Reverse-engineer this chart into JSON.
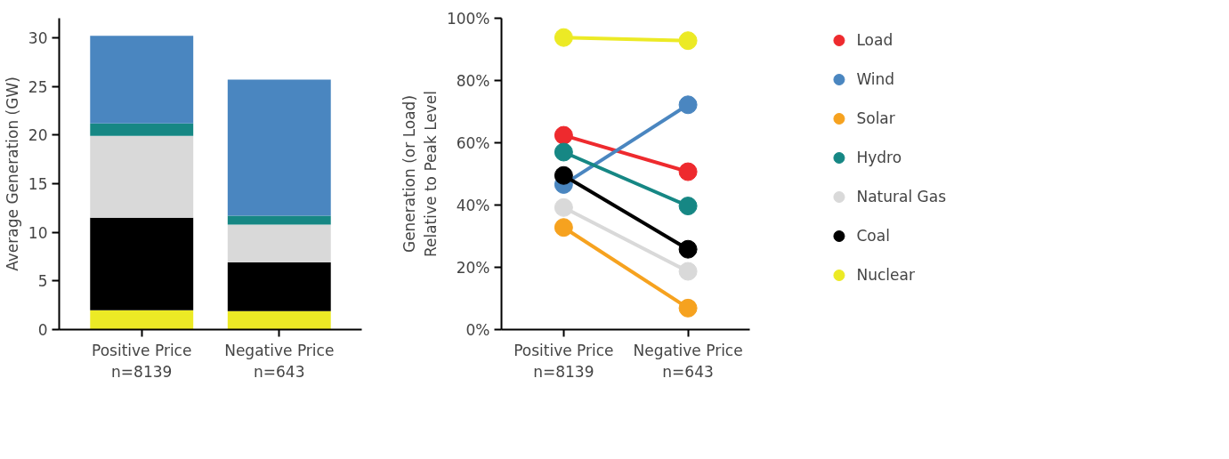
{
  "chart_data": [
    {
      "type": "bar",
      "stacked": true,
      "ylabel": "Average Generation (GW)",
      "categories": [
        "Positive Price\nn=8139",
        "Negative Price\nn=643"
      ],
      "ylim": [
        0,
        32
      ],
      "yticks": [
        0,
        5,
        10,
        15,
        20,
        25,
        30
      ],
      "grid": false,
      "series": [
        {
          "color": "#ecea25",
          "values": [
            2.0,
            1.9
          ]
        },
        {
          "color": "#000000",
          "values": [
            9.5,
            5.0
          ]
        },
        {
          "color": "#d9d9d9",
          "values": [
            8.4,
            3.9
          ]
        },
        {
          "color": "#168784",
          "values": [
            1.3,
            0.9
          ]
        },
        {
          "color": "#4a86c0",
          "values": [
            9.0,
            14.0
          ]
        }
      ]
    },
    {
      "type": "line",
      "ylabel": "Generation (or Load)\nRelative to Peak Level",
      "categories": [
        "Positive Price\nn=8139",
        "Negative Price\nn=643"
      ],
      "ylim": [
        0,
        100
      ],
      "yticks": [
        {
          "value": 0,
          "label": "0%"
        },
        {
          "value": 20,
          "label": "20%"
        },
        {
          "value": 40,
          "label": "40%"
        },
        {
          "value": 60,
          "label": "60%"
        },
        {
          "value": 80,
          "label": "80%"
        },
        {
          "value": 100,
          "label": "100%"
        }
      ],
      "grid": false,
      "legend": "right",
      "marker": "circle",
      "line_style": "solid",
      "series": [
        {
          "name": "Load",
          "color": "#ee2a2e",
          "values": [
            62.4,
            50.7
          ]
        },
        {
          "name": "Wind",
          "color": "#4a86c0",
          "values": [
            46.6,
            72.2
          ]
        },
        {
          "name": "Solar",
          "color": "#f6a21f",
          "values": [
            32.8,
            6.9
          ]
        },
        {
          "name": "Hydro",
          "color": "#168784",
          "values": [
            57.0,
            39.7
          ]
        },
        {
          "name": "Natural Gas",
          "color": "#d9d9d9",
          "values": [
            39.2,
            18.7
          ]
        },
        {
          "name": "Coal",
          "color": "#000000",
          "values": [
            49.5,
            25.8
          ]
        },
        {
          "name": "Nuclear",
          "color": "#ecea25",
          "values": [
            93.8,
            92.8
          ]
        }
      ]
    }
  ]
}
